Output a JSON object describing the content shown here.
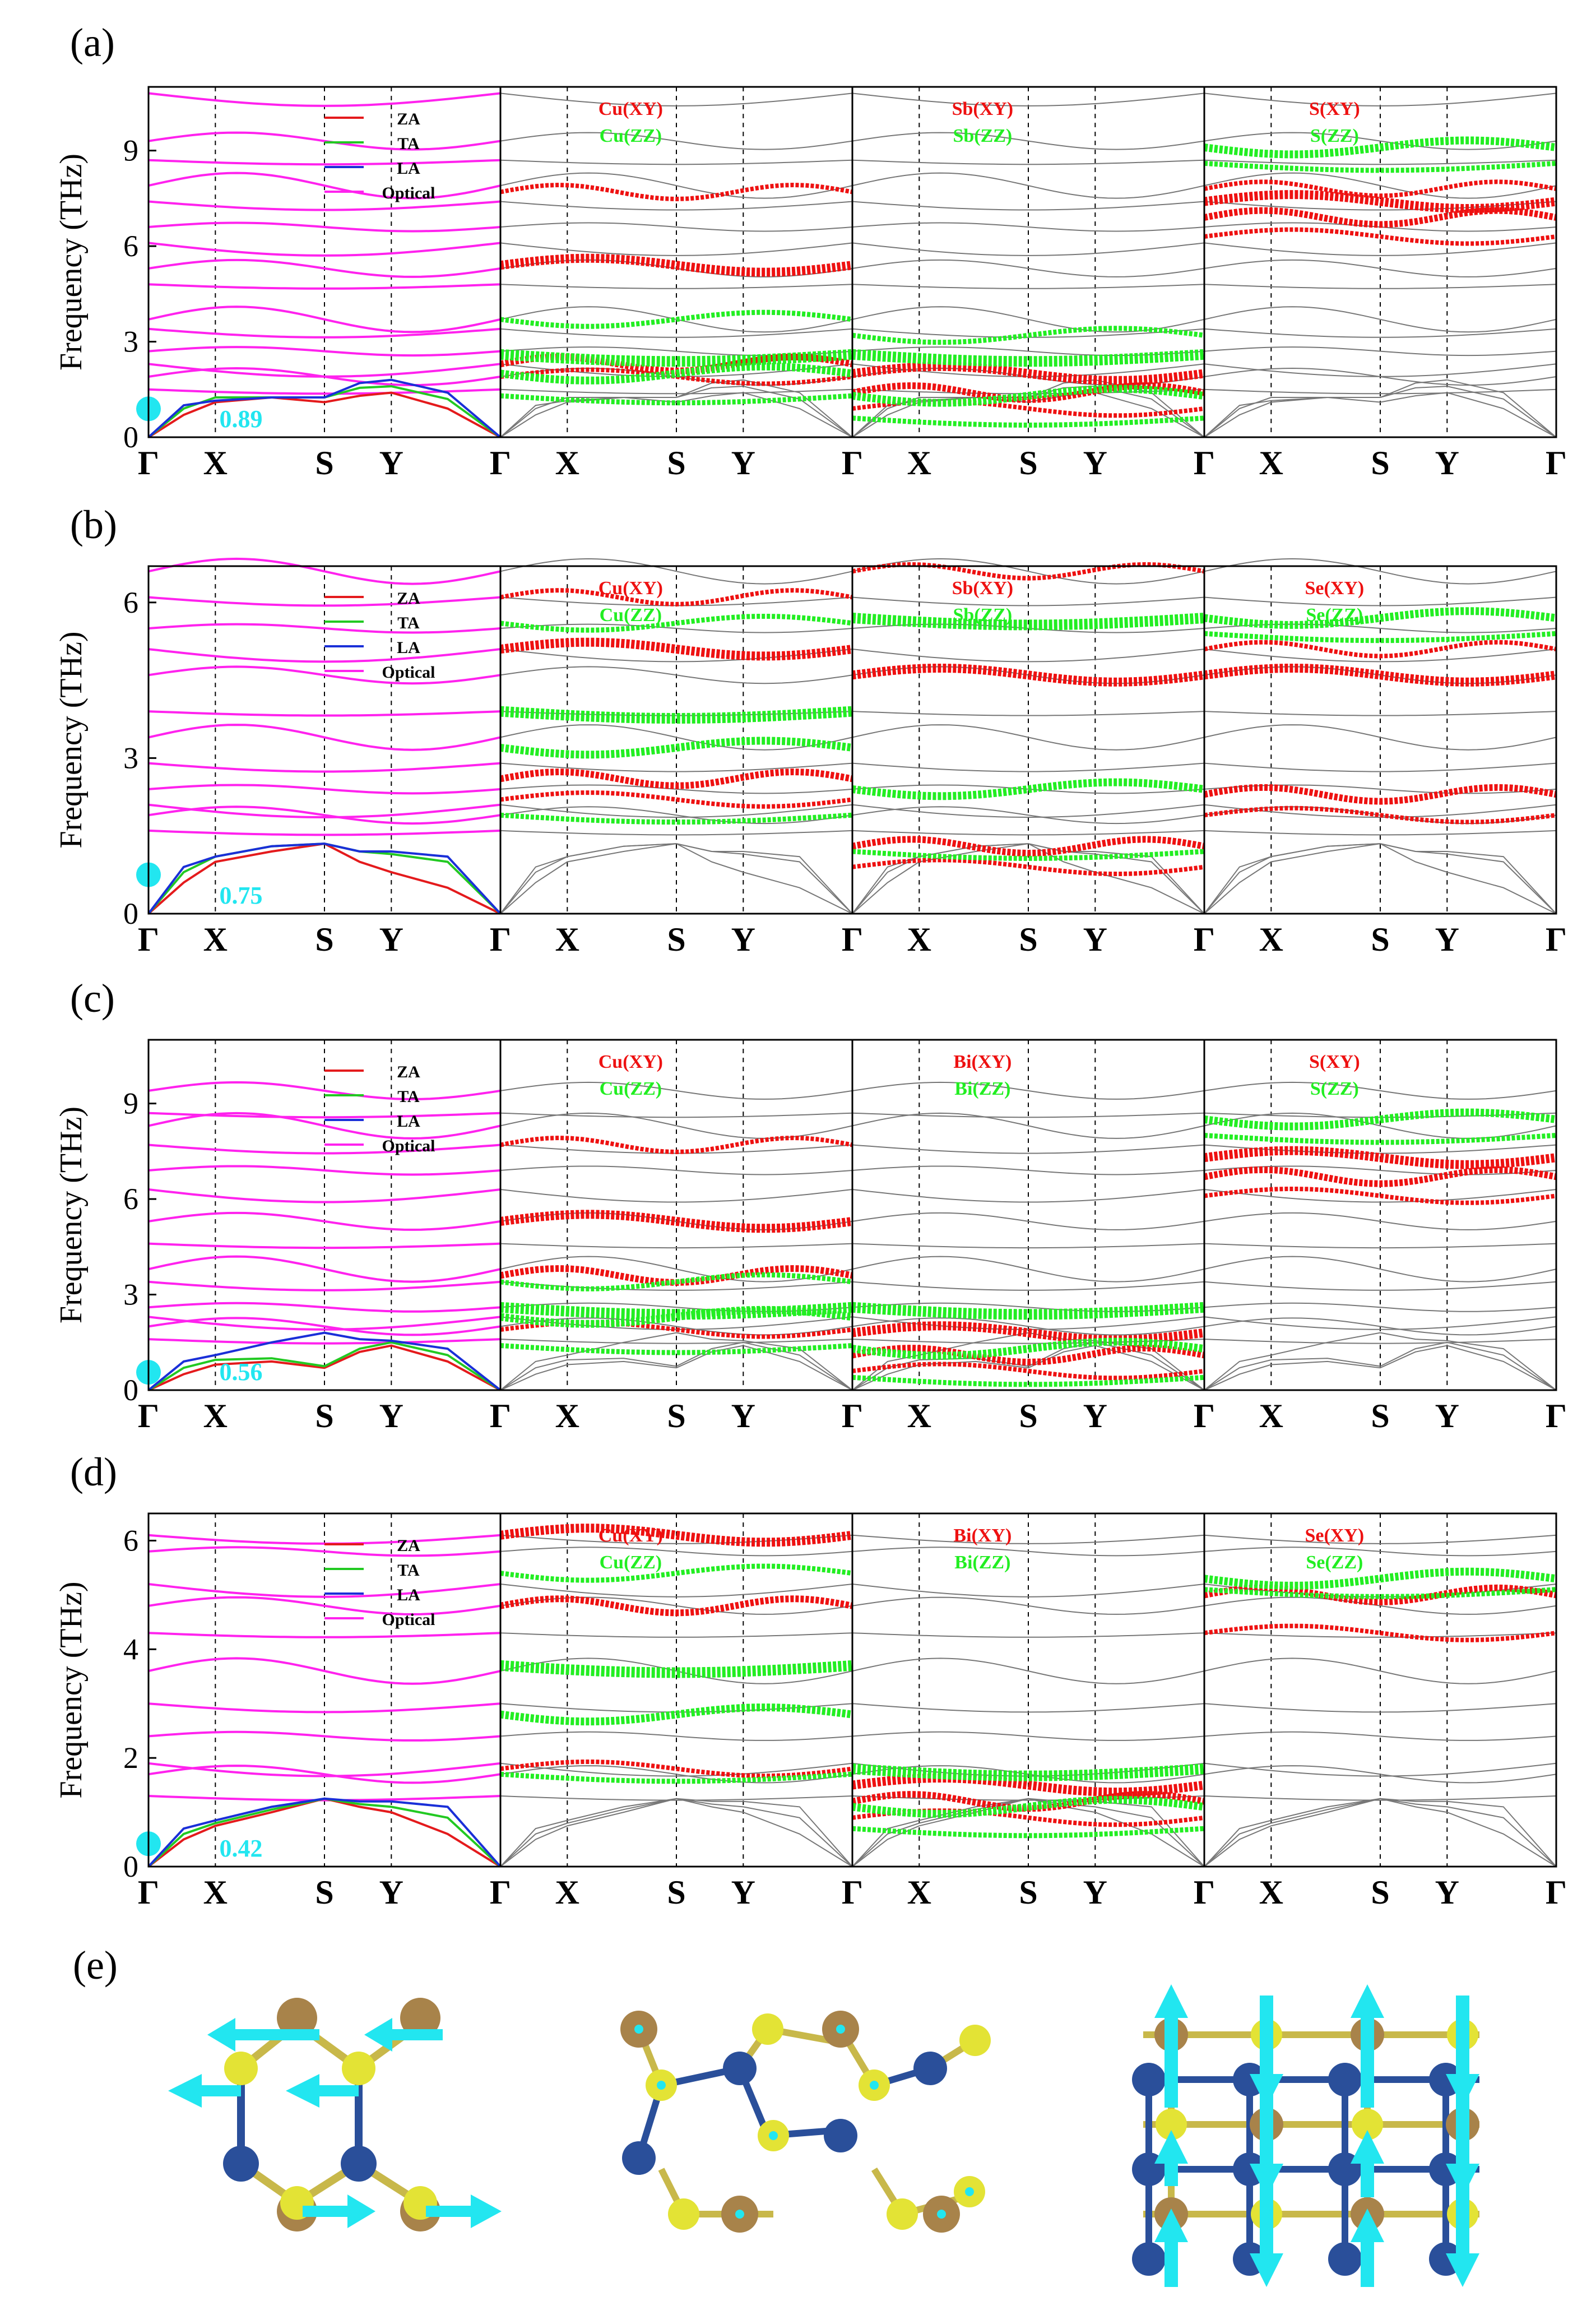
{
  "figure": {
    "colors": {
      "za": "#e41a1c",
      "ta": "#22c922",
      "la": "#1a2fd8",
      "optical": "#ff22ee",
      "xy": "#ee1111",
      "zz": "#22ee22",
      "gray_line": "#777777",
      "cyan": "#22e6f0",
      "atom_blue": "#2a4f9a",
      "atom_yellow": "#e3e335",
      "atom_brown": "#a8834a"
    },
    "panel_e_label": "(e)"
  },
  "chart_data": [
    {
      "type": "line",
      "panel_label": "(a)",
      "ylabel": "Frequency (THz)",
      "ylim": [
        0,
        11
      ],
      "yticks": [
        "0",
        "3",
        "6",
        "9"
      ],
      "ytick_values": [
        0,
        3,
        6,
        9
      ],
      "path_labels": [
        "Γ",
        "X",
        "S",
        "Y",
        "Γ"
      ],
      "path_positions": [
        0,
        0.19,
        0.5,
        0.69,
        1.0
      ],
      "legend": [
        "ZA",
        "TA",
        "LA",
        "Optical"
      ],
      "series": [
        {
          "name": "ZA",
          "x": [
            0,
            0.1,
            0.19,
            0.35,
            0.5,
            0.6,
            0.69,
            0.85,
            1.0
          ],
          "y": [
            0,
            0.7,
            1.1,
            1.25,
            1.1,
            1.3,
            1.4,
            0.9,
            0
          ]
        },
        {
          "name": "TA",
          "x": [
            0,
            0.1,
            0.19,
            0.35,
            0.5,
            0.6,
            0.69,
            0.85,
            1.0
          ],
          "y": [
            0,
            0.9,
            1.25,
            1.25,
            1.25,
            1.55,
            1.6,
            1.2,
            0
          ]
        },
        {
          "name": "LA",
          "x": [
            0,
            0.1,
            0.19,
            0.35,
            0.5,
            0.6,
            0.69,
            0.85,
            1.0
          ],
          "y": [
            0,
            1.0,
            1.15,
            1.25,
            1.25,
            1.7,
            1.8,
            1.4,
            0
          ]
        }
      ],
      "optical_levels": [
        1.5,
        1.9,
        2.3,
        2.7,
        3.4,
        3.7,
        4.8,
        5.3,
        6.1,
        6.6,
        7.4,
        7.9,
        8.7,
        9.3,
        10.8
      ],
      "acoustic_max": 0.89,
      "projection_panels": [
        {
          "labels": [
            "Cu(XY)",
            "Cu(ZZ)"
          ],
          "xy_levels": [
            1.9,
            2.3,
            5.4,
            7.7
          ],
          "zz_levels": [
            1.3,
            2.0,
            2.6,
            3.7
          ]
        },
        {
          "labels": [
            "Sb(XY)",
            "Sb(ZZ)"
          ],
          "xy_levels": [
            0.9,
            1.4,
            2.0
          ],
          "zz_levels": [
            0.6,
            1.3,
            2.6,
            3.2
          ]
        },
        {
          "labels": [
            "S(XY)",
            "S(ZZ)"
          ],
          "xy_levels": [
            6.3,
            6.9,
            7.4,
            7.8
          ],
          "zz_levels": [
            8.6,
            9.1
          ]
        }
      ]
    },
    {
      "type": "line",
      "panel_label": "(b)",
      "ylabel": "Frequency (THz)",
      "ylim": [
        0,
        6.7
      ],
      "yticks": [
        "0",
        "3",
        "6"
      ],
      "ytick_values": [
        0,
        3,
        6
      ],
      "path_labels": [
        "Γ",
        "X",
        "S",
        "Y",
        "Γ"
      ],
      "path_positions": [
        0,
        0.19,
        0.5,
        0.69,
        1.0
      ],
      "legend": [
        "ZA",
        "TA",
        "LA",
        "Optical"
      ],
      "series": [
        {
          "name": "ZA",
          "x": [
            0,
            0.1,
            0.19,
            0.35,
            0.5,
            0.6,
            0.69,
            0.85,
            1.0
          ],
          "y": [
            0,
            0.6,
            1.0,
            1.2,
            1.35,
            1.0,
            0.8,
            0.5,
            0
          ]
        },
        {
          "name": "TA",
          "x": [
            0,
            0.1,
            0.19,
            0.35,
            0.5,
            0.6,
            0.69,
            0.85,
            1.0
          ],
          "y": [
            0,
            0.8,
            1.1,
            1.3,
            1.35,
            1.2,
            1.15,
            1.0,
            0
          ]
        },
        {
          "name": "LA",
          "x": [
            0,
            0.1,
            0.19,
            0.35,
            0.5,
            0.6,
            0.69,
            0.85,
            1.0
          ],
          "y": [
            0,
            0.9,
            1.1,
            1.3,
            1.35,
            1.2,
            1.2,
            1.1,
            0
          ]
        }
      ],
      "optical_levels": [
        1.6,
        1.9,
        2.1,
        2.4,
        2.9,
        3.4,
        3.9,
        4.6,
        5.1,
        5.5,
        6.1,
        6.6
      ],
      "acoustic_max": 0.75,
      "projection_panels": [
        {
          "labels": [
            "Cu(XY)",
            "Cu(ZZ)"
          ],
          "xy_levels": [
            2.2,
            2.6,
            5.1,
            6.1
          ],
          "zz_levels": [
            1.9,
            3.2,
            3.9,
            5.6
          ]
        },
        {
          "labels": [
            "Sb(XY)",
            "Sb(ZZ)"
          ],
          "xy_levels": [
            0.9,
            1.3,
            4.6,
            6.6
          ],
          "zz_levels": [
            1.2,
            2.4,
            5.7
          ]
        },
        {
          "labels": [
            "Se(XY)",
            "Se(ZZ)"
          ],
          "xy_levels": [
            1.9,
            2.3,
            4.6,
            5.1
          ],
          "zz_levels": [
            5.4,
            5.7
          ]
        }
      ]
    },
    {
      "type": "line",
      "panel_label": "(c)",
      "ylabel": "Frequency (THz)",
      "ylim": [
        0,
        11
      ],
      "yticks": [
        "0",
        "3",
        "6",
        "9"
      ],
      "ytick_values": [
        0,
        3,
        6,
        9
      ],
      "path_labels": [
        "Γ",
        "X",
        "S",
        "Y",
        "Γ"
      ],
      "path_positions": [
        0,
        0.19,
        0.5,
        0.69,
        1.0
      ],
      "legend": [
        "ZA",
        "TA",
        "LA",
        "Optical"
      ],
      "series": [
        {
          "name": "ZA",
          "x": [
            0,
            0.1,
            0.19,
            0.35,
            0.5,
            0.6,
            0.69,
            0.85,
            1.0
          ],
          "y": [
            0,
            0.5,
            0.8,
            0.9,
            0.7,
            1.2,
            1.4,
            0.9,
            0
          ]
        },
        {
          "name": "TA",
          "x": [
            0,
            0.1,
            0.19,
            0.35,
            0.5,
            0.6,
            0.69,
            0.85,
            1.0
          ],
          "y": [
            0,
            0.7,
            0.95,
            1.0,
            0.75,
            1.3,
            1.5,
            1.1,
            0
          ]
        },
        {
          "name": "LA",
          "x": [
            0,
            0.1,
            0.19,
            0.35,
            0.5,
            0.6,
            0.69,
            0.85,
            1.0
          ],
          "y": [
            0,
            0.9,
            1.1,
            1.5,
            1.8,
            1.6,
            1.55,
            1.3,
            0
          ]
        }
      ],
      "optical_levels": [
        1.6,
        2.0,
        2.3,
        2.6,
        3.4,
        3.8,
        4.6,
        5.3,
        6.3,
        6.9,
        7.7,
        8.3,
        8.7,
        9.4
      ],
      "acoustic_max": 0.56,
      "projection_panels": [
        {
          "labels": [
            "Cu(XY)",
            "Cu(ZZ)"
          ],
          "xy_levels": [
            1.9,
            3.6,
            5.3,
            7.7
          ],
          "zz_levels": [
            1.4,
            2.3,
            2.6,
            3.4
          ]
        },
        {
          "labels": [
            "Bi(XY)",
            "Bi(ZZ)"
          ],
          "xy_levels": [
            0.6,
            1.1,
            1.8
          ],
          "zz_levels": [
            0.4,
            1.3,
            2.6
          ]
        },
        {
          "labels": [
            "S(XY)",
            "S(ZZ)"
          ],
          "xy_levels": [
            6.1,
            6.7,
            7.3
          ],
          "zz_levels": [
            8.0,
            8.5
          ]
        }
      ]
    },
    {
      "type": "line",
      "panel_label": "(d)",
      "ylabel": "Frequency (THz)",
      "ylim": [
        0,
        6.5
      ],
      "yticks": [
        "0",
        "2",
        "4",
        "6"
      ],
      "ytick_values": [
        0,
        2,
        4,
        6
      ],
      "path_labels": [
        "Γ",
        "X",
        "S",
        "Y",
        "Γ"
      ],
      "path_positions": [
        0,
        0.19,
        0.5,
        0.69,
        1.0
      ],
      "legend": [
        "ZA",
        "TA",
        "LA",
        "Optical"
      ],
      "series": [
        {
          "name": "ZA",
          "x": [
            0,
            0.1,
            0.19,
            0.35,
            0.5,
            0.6,
            0.69,
            0.85,
            1.0
          ],
          "y": [
            0,
            0.5,
            0.75,
            1.0,
            1.25,
            1.1,
            1.0,
            0.6,
            0
          ]
        },
        {
          "name": "TA",
          "x": [
            0,
            0.1,
            0.19,
            0.35,
            0.5,
            0.6,
            0.69,
            0.85,
            1.0
          ],
          "y": [
            0,
            0.6,
            0.8,
            1.05,
            1.25,
            1.15,
            1.1,
            0.9,
            0
          ]
        },
        {
          "name": "LA",
          "x": [
            0,
            0.1,
            0.19,
            0.35,
            0.5,
            0.6,
            0.69,
            0.85,
            1.0
          ],
          "y": [
            0,
            0.7,
            0.85,
            1.1,
            1.25,
            1.2,
            1.2,
            1.1,
            0
          ]
        }
      ],
      "optical_levels": [
        1.3,
        1.7,
        1.9,
        2.4,
        3.0,
        3.6,
        4.3,
        4.8,
        5.2,
        5.8,
        6.1
      ],
      "acoustic_max": 0.42,
      "projection_panels": [
        {
          "labels": [
            "Cu(XY)",
            "Cu(ZZ)"
          ],
          "xy_levels": [
            1.8,
            4.8,
            6.1
          ],
          "zz_levels": [
            1.7,
            2.8,
            3.7,
            5.4
          ]
        },
        {
          "labels": [
            "Bi(XY)",
            "Bi(ZZ)"
          ],
          "xy_levels": [
            0.9,
            1.2,
            1.5
          ],
          "zz_levels": [
            0.7,
            1.1,
            1.8
          ]
        },
        {
          "labels": [
            "Se(XY)",
            "Se(ZZ)"
          ],
          "xy_levels": [
            4.3,
            5.0
          ],
          "zz_levels": [
            5.1,
            5.3
          ]
        }
      ]
    }
  ]
}
